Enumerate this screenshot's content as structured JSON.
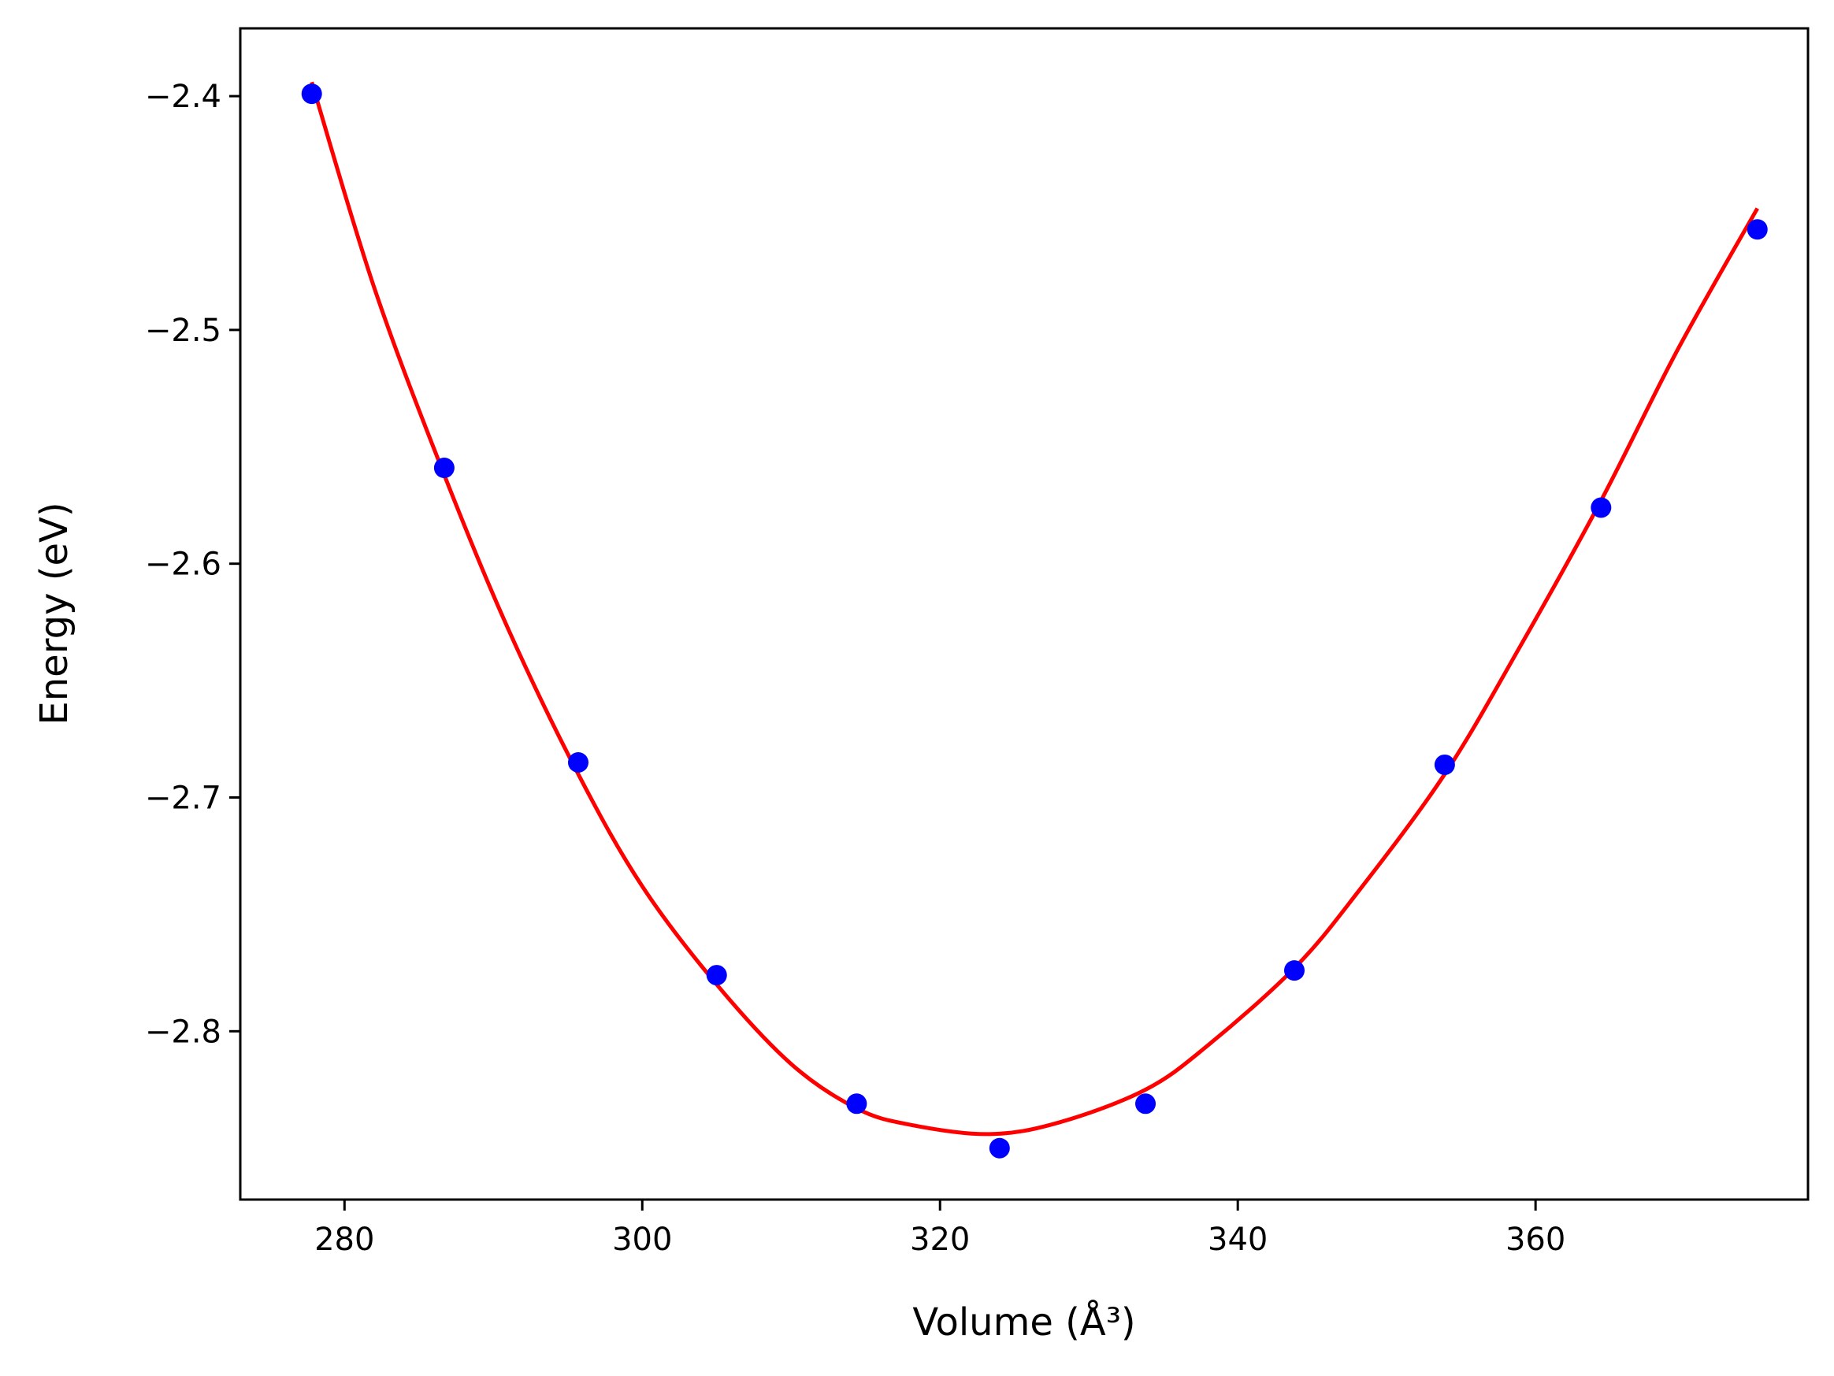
{
  "chart_data": {
    "type": "scatter",
    "title": "",
    "xlabel": "Volume (Å³)",
    "ylabel": "Energy (eV)",
    "xlim": [
      273.0,
      378.3
    ],
    "ylim": [
      -2.872,
      -2.371
    ],
    "xticks": [
      280,
      300,
      320,
      340,
      360
    ],
    "yticks": [
      -2.4,
      -2.5,
      -2.6,
      -2.7,
      -2.8
    ],
    "xtick_labels": [
      "280",
      "300",
      "320",
      "340",
      "360"
    ],
    "ytick_labels": [
      "−2.4",
      "−2.5",
      "−2.6",
      "−2.7",
      "−2.8"
    ],
    "grid": false,
    "series": [
      {
        "kind": "points",
        "color": "#0000ff",
        "x": [
          277.8,
          286.7,
          295.7,
          305.0,
          314.4,
          324.0,
          333.8,
          343.8,
          353.9,
          364.4,
          374.9
        ],
        "y": [
          -2.399,
          -2.559,
          -2.685,
          -2.776,
          -2.831,
          -2.85,
          -2.831,
          -2.774,
          -2.686,
          -2.576,
          -2.457
        ]
      },
      {
        "kind": "fit-line",
        "color": "#ff0000",
        "x": [
          277.8,
          282.0,
          286.7,
          291.0,
          295.7,
          300.0,
          305.0,
          310.0,
          314.4,
          318.0,
          323.3,
          328.0,
          333.8,
          338.0,
          343.8,
          348.0,
          353.9,
          359.0,
          364.4,
          369.5,
          374.9
        ],
        "y": [
          -2.394,
          -2.482,
          -2.562,
          -2.628,
          -2.69,
          -2.738,
          -2.78,
          -2.814,
          -2.833,
          -2.84,
          -2.844,
          -2.839,
          -2.825,
          -2.806,
          -2.773,
          -2.741,
          -2.69,
          -2.635,
          -2.573,
          -2.509,
          -2.448
        ]
      }
    ]
  }
}
